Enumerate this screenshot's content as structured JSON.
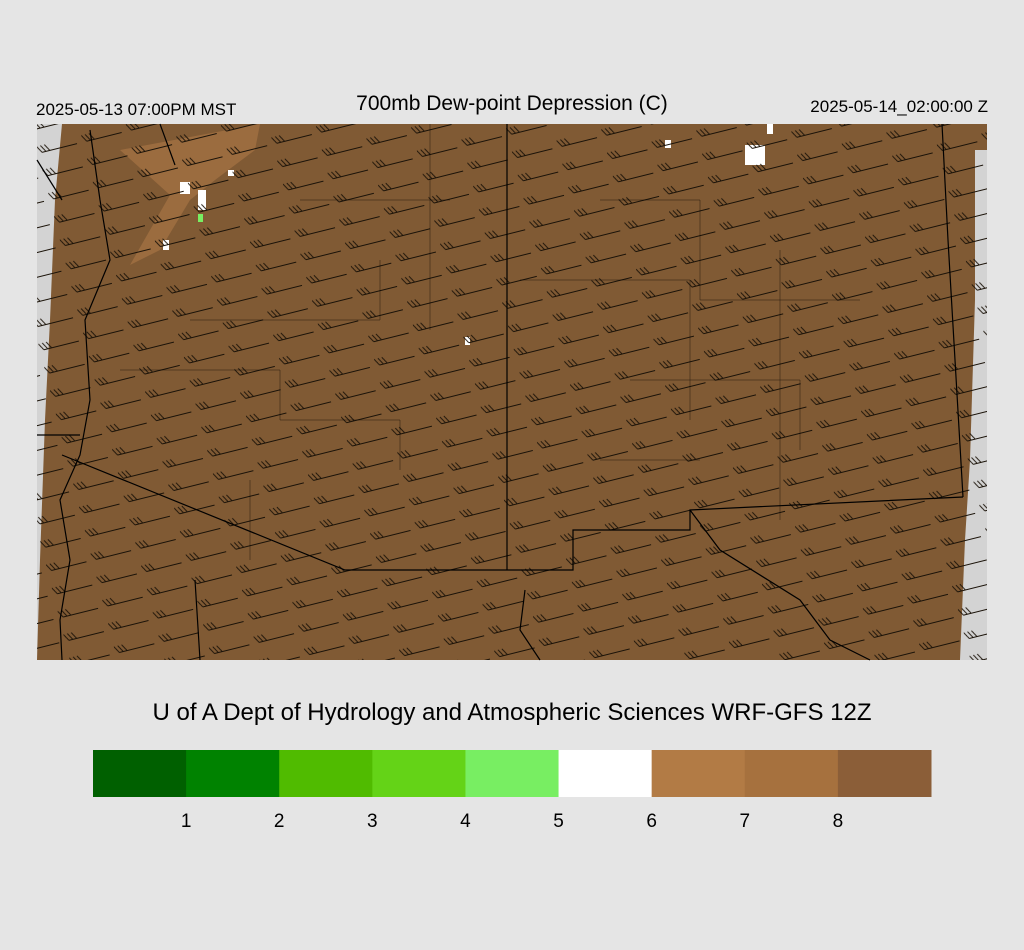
{
  "header": {
    "left": "2025-05-13 07:00PM MST",
    "title": "700mb Dew-point Depression (C)",
    "right": "2025-05-14_02:00:00 Z"
  },
  "footer": {
    "credit": "U of A Dept of Hydrology and Atmospheric Sciences WRF-GFS 12Z"
  },
  "colorbar": {
    "colors": [
      "#006000",
      "#008200",
      "#50bb00",
      "#64d317",
      "#78ee62",
      "#ffffff",
      "#b27b45",
      "#a6713e",
      "#8b5e38"
    ],
    "labels": [
      1,
      2,
      3,
      4,
      5,
      6,
      7,
      8
    ]
  }
}
